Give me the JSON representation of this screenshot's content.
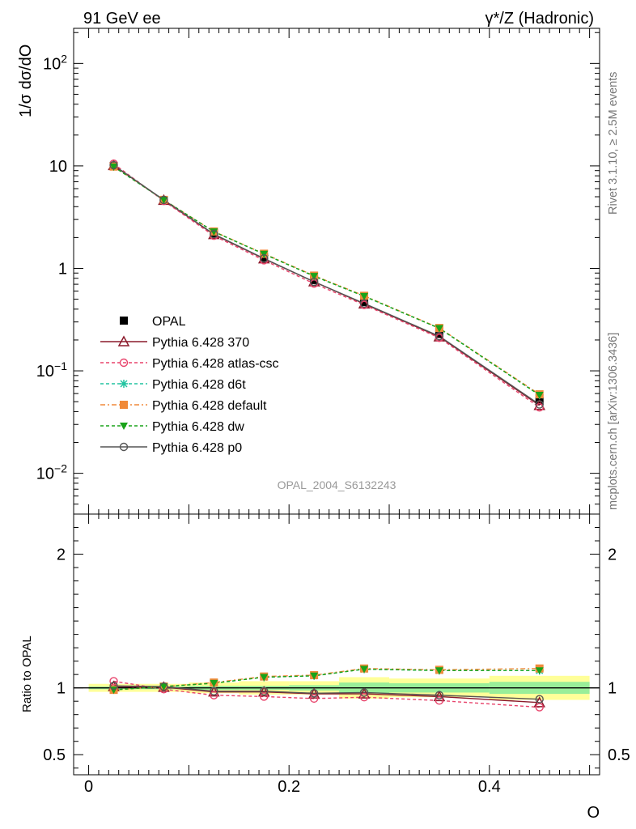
{
  "header": {
    "left": "91 GeV ee",
    "right": "γ*/Z (Hadronic)"
  },
  "side": {
    "rivet": "Rivet 3.1.10, ≥ 2.5M events",
    "mcplots": "mcplots.cern.ch [arXiv:1306.3436]"
  },
  "watermark": "OPAL_2004_S6132243",
  "colors": {
    "OPAL": "#000000",
    "p370": "#8b1a2b",
    "atlas": "#e8436b",
    "d6t": "#22c4a0",
    "default": "#f08a3a",
    "dw": "#1aa31a",
    "p0": "#555555",
    "band_yellow": "#ffff99",
    "band_green": "#99ee99"
  },
  "chart_data": [
    {
      "type": "line",
      "ylabel": "1/σ dσ/dO",
      "yscale": "log",
      "ylim": [
        0.004,
        220
      ],
      "xlim": [
        -0.015,
        0.51
      ],
      "yticks": [
        {
          "v": 0.01,
          "base": "10",
          "exp": "−2"
        },
        {
          "v": 0.1,
          "base": "10",
          "exp": "−1"
        },
        {
          "v": 1,
          "base": "1",
          "exp": ""
        },
        {
          "v": 10,
          "base": "10",
          "exp": ""
        },
        {
          "v": 100,
          "base": "10",
          "exp": "2"
        }
      ],
      "x": [
        0.025,
        0.075,
        0.125,
        0.175,
        0.225,
        0.275,
        0.35,
        0.45
      ],
      "series": [
        {
          "name": "OPAL",
          "key": "OPAL",
          "marker": "square-filled",
          "dash": "none",
          "values": [
            10.0,
            4.6,
            2.2,
            1.28,
            0.77,
            0.47,
            0.23,
            0.051
          ]
        },
        {
          "name": "Pythia 6.428 370",
          "key": "p370",
          "marker": "triangle-open",
          "dash": "solid",
          "values": [
            10.1,
            4.62,
            2.14,
            1.24,
            0.74,
            0.45,
            0.215,
            0.046
          ]
        },
        {
          "name": "Pythia 6.428 atlas-csc",
          "key": "atlas",
          "marker": "circle-open",
          "dash": "4,3",
          "values": [
            10.5,
            4.55,
            2.08,
            1.2,
            0.71,
            0.44,
            0.21,
            0.044
          ]
        },
        {
          "name": "Pythia 6.428 d6t",
          "key": "d6t",
          "marker": "star",
          "dash": "4,3",
          "values": [
            9.85,
            4.65,
            2.28,
            1.38,
            0.84,
            0.535,
            0.26,
            0.058
          ]
        },
        {
          "name": "Pythia 6.428 default",
          "key": "default",
          "marker": "square-filled",
          "dash": "6,3,2,3",
          "values": [
            9.85,
            4.66,
            2.29,
            1.39,
            0.85,
            0.54,
            0.262,
            0.059
          ]
        },
        {
          "name": "Pythia 6.428 dw",
          "key": "dw",
          "marker": "triangle-down-filled",
          "dash": "4,3",
          "values": [
            9.8,
            4.65,
            2.28,
            1.38,
            0.84,
            0.535,
            0.26,
            0.058
          ]
        },
        {
          "name": "Pythia 6.428 p0",
          "key": "p0",
          "marker": "circle-open",
          "dash": "solid",
          "values": [
            10.15,
            4.65,
            2.16,
            1.25,
            0.74,
            0.455,
            0.218,
            0.047
          ]
        }
      ]
    },
    {
      "type": "line",
      "xlabel": "O",
      "ylabel": "Ratio to OPAL",
      "ylim": [
        0.35,
        2.3
      ],
      "xlim": [
        -0.015,
        0.51
      ],
      "yticks": [
        0.5,
        1,
        2
      ],
      "xticks": [
        0,
        0.2,
        0.4
      ],
      "xtick_labels": [
        "0",
        "0.2",
        "0.4"
      ],
      "band_edges": [
        0,
        0.05,
        0.1,
        0.15,
        0.2,
        0.25,
        0.3,
        0.4,
        0.5
      ],
      "band_yellow": [
        [
          0.97,
          1.03
        ],
        [
          0.97,
          1.03
        ],
        [
          0.96,
          1.04
        ],
        [
          0.95,
          1.05
        ],
        [
          0.95,
          1.05
        ],
        [
          0.92,
          1.08
        ],
        [
          0.93,
          1.07
        ],
        [
          0.91,
          1.09
        ]
      ],
      "band_green": [
        [
          0.99,
          1.01
        ],
        [
          0.99,
          1.01
        ],
        [
          0.985,
          1.015
        ],
        [
          0.985,
          1.015
        ],
        [
          0.98,
          1.02
        ],
        [
          0.96,
          1.04
        ],
        [
          0.965,
          1.035
        ],
        [
          0.955,
          1.045
        ]
      ],
      "x": [
        0.025,
        0.075,
        0.125,
        0.175,
        0.225,
        0.275,
        0.35,
        0.45
      ],
      "series": [
        {
          "name": "Pythia 6.428 370",
          "key": "p370",
          "marker": "triangle-open",
          "dash": "solid",
          "values": [
            1.01,
            1.005,
            0.97,
            0.97,
            0.955,
            0.955,
            0.935,
            0.89
          ]
        },
        {
          "name": "Pythia 6.428 atlas-csc",
          "key": "atlas",
          "marker": "circle-open",
          "dash": "4,3",
          "values": [
            1.05,
            0.99,
            0.945,
            0.935,
            0.92,
            0.93,
            0.905,
            0.855
          ]
        },
        {
          "name": "Pythia 6.428 d6t",
          "key": "d6t",
          "marker": "star",
          "dash": "4,3",
          "values": [
            0.985,
            1.01,
            1.035,
            1.08,
            1.09,
            1.14,
            1.13,
            1.13
          ]
        },
        {
          "name": "Pythia 6.428 default",
          "key": "default",
          "marker": "square-filled",
          "dash": "6,3,2,3",
          "values": [
            0.985,
            1.01,
            1.04,
            1.085,
            1.095,
            1.145,
            1.135,
            1.145
          ]
        },
        {
          "name": "Pythia 6.428 dw",
          "key": "dw",
          "marker": "triangle-down-filled",
          "dash": "4,3",
          "values": [
            0.985,
            1.01,
            1.035,
            1.08,
            1.09,
            1.14,
            1.13,
            1.13
          ]
        },
        {
          "name": "Pythia 6.428 p0",
          "key": "p0",
          "marker": "circle-open",
          "dash": "solid",
          "values": [
            1.015,
            1.01,
            0.975,
            0.975,
            0.96,
            0.965,
            0.945,
            0.915
          ]
        }
      ]
    }
  ]
}
